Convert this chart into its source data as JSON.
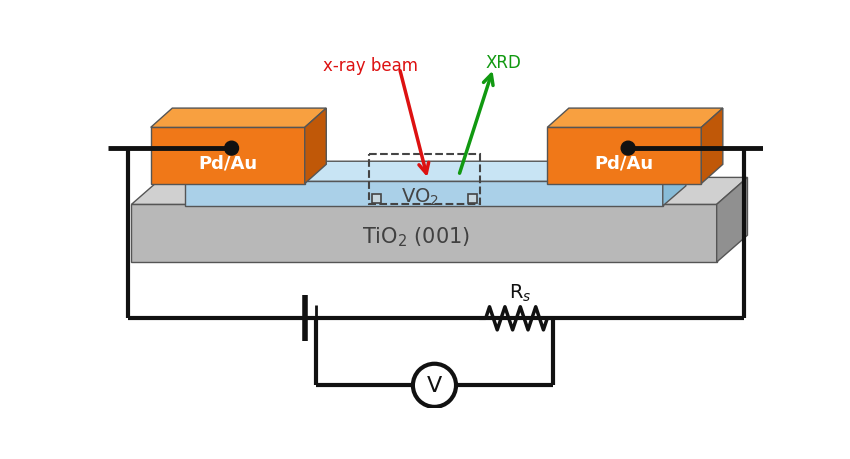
{
  "bg_color": "#ffffff",
  "substrate_face": "#b8b8b8",
  "substrate_top": "#d0d0d0",
  "substrate_side": "#909090",
  "vo2_face": "#aad0e8",
  "vo2_top": "#c8e4f4",
  "vo2_side": "#88bcd8",
  "elec_face": "#f07818",
  "elec_top": "#f8a040",
  "elec_side": "#c05808",
  "wire_color": "#111111",
  "xray_color": "#dd1111",
  "xrd_color": "#119911",
  "text_color": "#333333",
  "circuit_color": "#111111",
  "xray_label": "x-ray beam",
  "xrd_label": "XRD",
  "pdau_label": "Pd/Au",
  "vo2_label": "VO$_2$",
  "sub_label": "TiO$_2$ (001)",
  "rs_label": "R$_s$",
  "v_label": "V"
}
